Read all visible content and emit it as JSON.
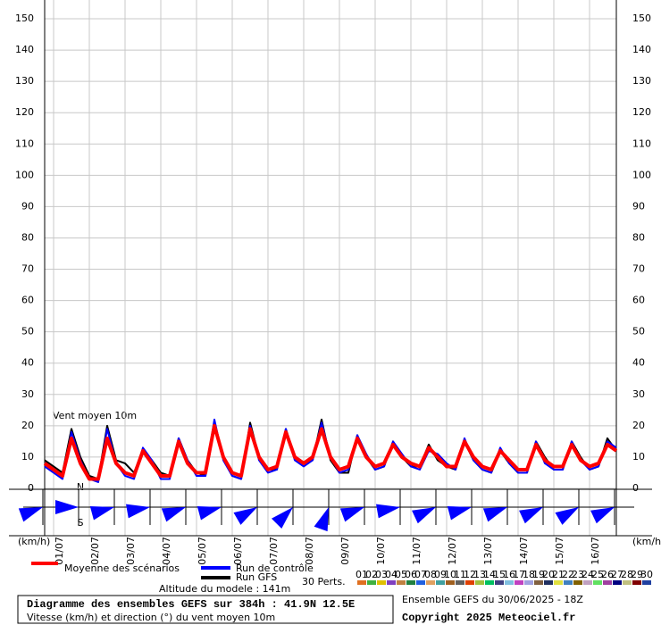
{
  "chart_data": {
    "type": "line",
    "annotation": "Vent moyen 10m",
    "y_unit_left": "(km/h)",
    "y_unit_right": "(km/h)",
    "title": "Diagramme des ensembles GEFS sur 384h : 41.9N 12.5E",
    "subtitle": "Vitesse (km/h) et direction (°) du vent moyen 10m",
    "run_info": "Ensemble GEFS du 30/06/2025 - 18Z",
    "copyright": "Copyright 2025 Meteociel.fr",
    "altitude": "Altitude du modele : 141m",
    "perturbations_label": "30 Perts.",
    "compass": [
      "N",
      "S"
    ],
    "categories": [
      null,
      "01/07",
      null,
      null,
      null,
      "02/07",
      null,
      null,
      null,
      "03/07",
      null,
      null,
      null,
      "04/07",
      null,
      null,
      null,
      "05/07",
      null,
      null,
      null,
      "06/07",
      null,
      null,
      null,
      "07/07",
      null,
      null,
      null,
      "08/07",
      null,
      null,
      null,
      "09/07",
      null,
      null,
      null,
      "10/07",
      null,
      null,
      null,
      "11/07",
      null,
      null,
      null,
      "12/07",
      null,
      null,
      null,
      "13/07",
      null,
      null,
      null,
      "14/07",
      null,
      null,
      null,
      "15/07",
      null,
      null,
      null,
      "16/07",
      null,
      null,
      null
    ],
    "series": [
      {
        "name": "Moyenne des scénarios",
        "color": "#ff0000",
        "width": 4,
        "values": [
          8,
          6,
          4,
          16,
          8,
          3,
          3,
          16,
          8,
          5,
          4,
          12,
          8,
          4,
          4,
          15,
          8,
          5,
          5,
          20,
          10,
          5,
          4,
          19,
          10,
          6,
          7,
          18,
          10,
          8,
          10,
          19,
          10,
          6,
          7,
          16,
          10,
          7,
          8,
          14,
          10,
          8,
          7,
          13,
          10,
          7,
          7,
          15,
          10,
          7,
          6,
          12,
          9,
          6,
          6,
          14,
          9,
          7,
          7,
          14,
          9,
          7,
          8,
          14,
          12
        ]
      },
      {
        "name": "Run de contrôle",
        "color": "#0000ff",
        "width": 2,
        "values": [
          7,
          5,
          3,
          18,
          9,
          3,
          2,
          19,
          8,
          4,
          3,
          13,
          9,
          3,
          3,
          16,
          9,
          4,
          4,
          22,
          9,
          4,
          3,
          20,
          9,
          5,
          6,
          19,
          9,
          7,
          9,
          21,
          10,
          5,
          6,
          17,
          11,
          6,
          7,
          15,
          11,
          7,
          6,
          12,
          11,
          8,
          6,
          16,
          9,
          6,
          5,
          13,
          8,
          5,
          5,
          15,
          8,
          6,
          6,
          15,
          9,
          6,
          7,
          15,
          13
        ]
      },
      {
        "name": "Run GFS",
        "color": "#000000",
        "width": 2,
        "values": [
          9,
          7,
          5,
          19,
          10,
          4,
          3,
          20,
          9,
          8,
          5,
          12,
          9,
          5,
          4,
          16,
          9,
          5,
          4,
          21,
          10,
          4,
          3,
          21,
          10,
          6,
          6,
          19,
          10,
          8,
          9,
          22,
          9,
          5,
          5,
          17,
          10,
          6,
          7,
          15,
          10,
          7,
          7,
          14,
          9,
          7,
          6,
          15,
          9,
          6,
          5,
          12,
          8,
          5,
          5,
          15,
          10,
          6,
          6,
          15,
          10,
          6,
          7,
          16,
          12
        ]
      }
    ],
    "perturbations": [
      {
        "label": "01",
        "color": "#e07020"
      },
      {
        "label": "02",
        "color": "#40b040"
      },
      {
        "label": "03",
        "color": "#e0c000"
      },
      {
        "label": "04",
        "color": "#8040c0"
      },
      {
        "label": "05",
        "color": "#c08040"
      },
      {
        "label": "06",
        "color": "#208040"
      },
      {
        "label": "07",
        "color": "#2060e0"
      },
      {
        "label": "08",
        "color": "#e0a060"
      },
      {
        "label": "09",
        "color": "#40a0a0"
      },
      {
        "label": "10",
        "color": "#a06020"
      },
      {
        "label": "11",
        "color": "#606060"
      },
      {
        "label": "12",
        "color": "#e04000"
      },
      {
        "label": "13",
        "color": "#a0c040"
      },
      {
        "label": "14",
        "color": "#00c060"
      },
      {
        "label": "15",
        "color": "#404080"
      },
      {
        "label": "16",
        "color": "#80c0e0"
      },
      {
        "label": "17",
        "color": "#c040c0"
      },
      {
        "label": "18",
        "color": "#a0a0e0"
      },
      {
        "label": "19",
        "color": "#806040"
      },
      {
        "label": "20",
        "color": "#203060"
      },
      {
        "label": "21",
        "color": "#e0e040"
      },
      {
        "label": "22",
        "color": "#4080c0"
      },
      {
        "label": "23",
        "color": "#806000"
      },
      {
        "label": "24",
        "color": "#c0a0c0"
      },
      {
        "label": "25",
        "color": "#60e060"
      },
      {
        "label": "26",
        "color": "#a040a0"
      },
      {
        "label": "27",
        "color": "#000080"
      },
      {
        "label": "28",
        "color": "#c0c080"
      },
      {
        "label": "29",
        "color": "#800000"
      },
      {
        "label": "30",
        "color": "#2040a0"
      }
    ],
    "wind_direction": [
      250,
      270,
      255,
      260,
      250,
      255,
      240,
      225,
      200,
      250,
      260,
      245,
      255,
      250,
      245,
      240,
      245
    ],
    "ylim": [
      0,
      156
    ],
    "yticks": [
      0,
      10,
      20,
      30,
      40,
      50,
      60,
      70,
      80,
      90,
      100,
      110,
      120,
      130,
      140,
      150
    ],
    "grid": true
  }
}
